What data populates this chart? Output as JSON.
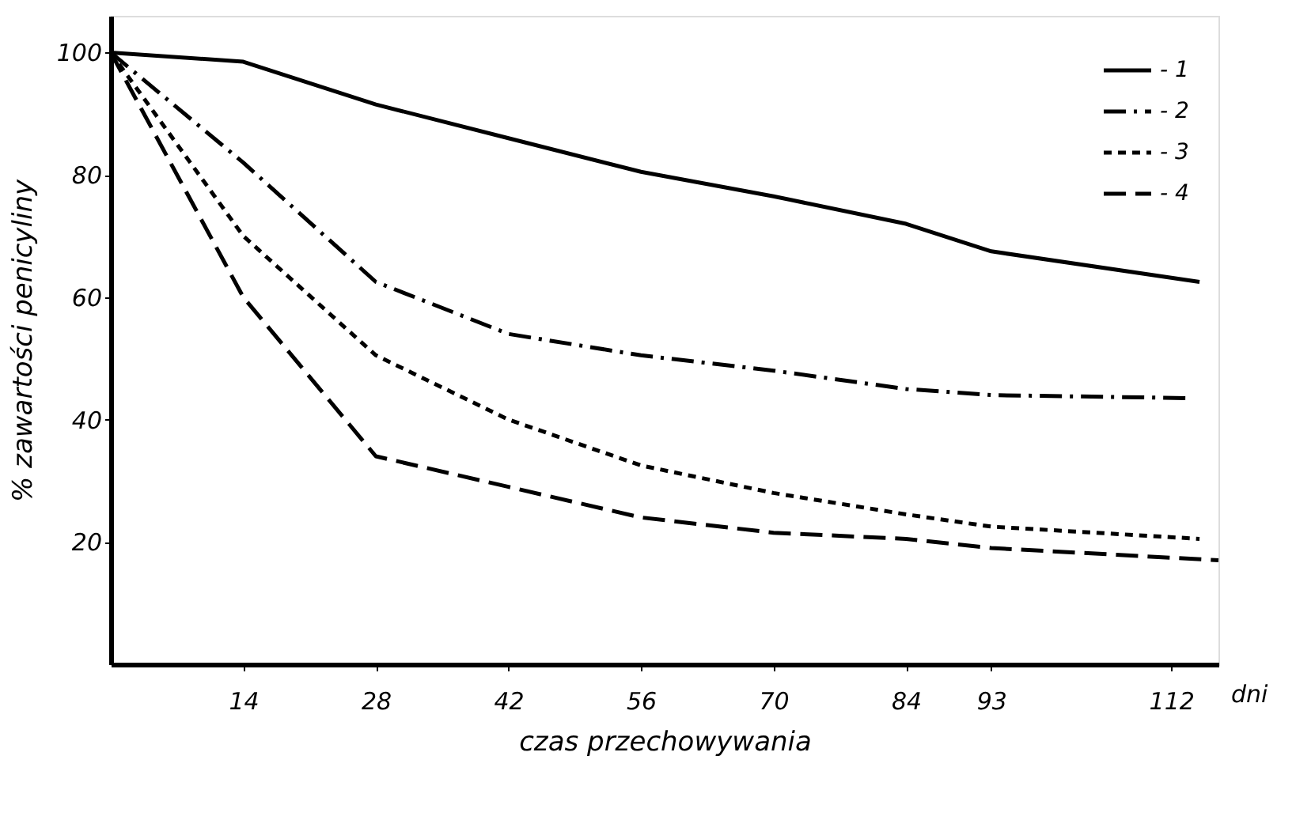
{
  "chart_data": {
    "type": "line",
    "xlabel": "czas przechowywania",
    "ylabel": "% zawartości penicyliny",
    "annotations": [
      "dni"
    ],
    "xlim": [
      0,
      117
    ],
    "ylim": [
      0,
      106
    ],
    "xticks": [
      14,
      28,
      42,
      56,
      70,
      84,
      93,
      112
    ],
    "yticks": [
      20,
      40,
      60,
      80,
      100
    ],
    "grid": false,
    "legend": "top right",
    "marker": "none",
    "series": [
      {
        "name": "- 1",
        "color": "#000000",
        "line_style": "solid",
        "x": [
          0,
          14,
          28,
          42,
          56,
          70,
          84,
          93,
          115
        ],
        "values": [
          100,
          98.5,
          91.5,
          86,
          80.5,
          76.5,
          72,
          67.5,
          62.5
        ]
      },
      {
        "name": "- 2",
        "color": "#000000",
        "line_style": "dashdot",
        "x": [
          0,
          14,
          28,
          42,
          56,
          70,
          84,
          93,
          114
        ],
        "values": [
          100,
          82,
          62.5,
          54,
          50.5,
          48,
          45,
          44,
          43.5
        ]
      },
      {
        "name": "- 3",
        "color": "#000000",
        "line_style": "dotted",
        "x": [
          0,
          14,
          28,
          42,
          56,
          70,
          84,
          93,
          115
        ],
        "values": [
          100,
          70,
          50.5,
          40,
          32.5,
          28,
          24.5,
          22.5,
          20.5
        ]
      },
      {
        "name": "- 4",
        "color": "#000000",
        "line_style": "dashed",
        "x": [
          0,
          14,
          28,
          42,
          56,
          70,
          84,
          93,
          117
        ],
        "values": [
          100,
          60,
          34,
          29,
          24,
          21.5,
          20.5,
          19,
          17
        ]
      }
    ]
  }
}
